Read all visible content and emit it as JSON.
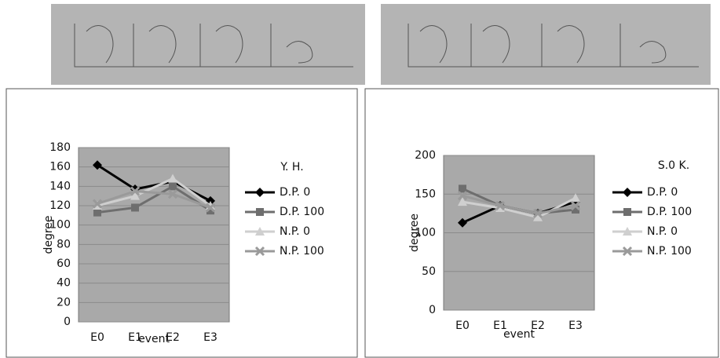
{
  "chart_data": [
    {
      "type": "line",
      "title": "Y. H.",
      "x_label": "event",
      "y_label": "degree",
      "categories": [
        "E0",
        "E1",
        "E2",
        "E3"
      ],
      "ylim": [
        0,
        180
      ],
      "yticks": [
        0,
        20,
        40,
        60,
        80,
        100,
        120,
        140,
        160,
        180
      ],
      "grid": true,
      "series": [
        {
          "name": "D.P. 0",
          "color": "#000000",
          "marker": "diamond",
          "values": [
            162,
            137,
            145,
            125
          ]
        },
        {
          "name": "D.P. 100",
          "color": "#6e6e6e",
          "marker": "square",
          "values": [
            113,
            118,
            140,
            115
          ]
        },
        {
          "name": "N.P. 0",
          "color": "#cfcfcf",
          "marker": "triangle",
          "values": [
            120,
            130,
            148,
            120
          ]
        },
        {
          "name": "N.P. 100",
          "color": "#9a9a9a",
          "marker": "x",
          "values": [
            122,
            135,
            132,
            118
          ]
        }
      ]
    },
    {
      "type": "line",
      "title": "S.0 K.",
      "x_label": "event",
      "y_label": "degree",
      "categories": [
        "E0",
        "E1",
        "E2",
        "E3"
      ],
      "ylim": [
        0,
        200
      ],
      "yticks": [
        0,
        50,
        100,
        150,
        200
      ],
      "grid": true,
      "series": [
        {
          "name": "D.P. 0",
          "color": "#000000",
          "marker": "diamond",
          "values": [
            113,
            135,
            125,
            140
          ]
        },
        {
          "name": "D.P. 100",
          "color": "#6e6e6e",
          "marker": "square",
          "values": [
            157,
            135,
            125,
            130
          ]
        },
        {
          "name": "N.P. 0",
          "color": "#cfcfcf",
          "marker": "triangle",
          "values": [
            140,
            132,
            120,
            145
          ]
        },
        {
          "name": "N.P. 100",
          "color": "#9a9a9a",
          "marker": "x",
          "values": [
            148,
            135,
            125,
            135
          ]
        }
      ]
    }
  ]
}
